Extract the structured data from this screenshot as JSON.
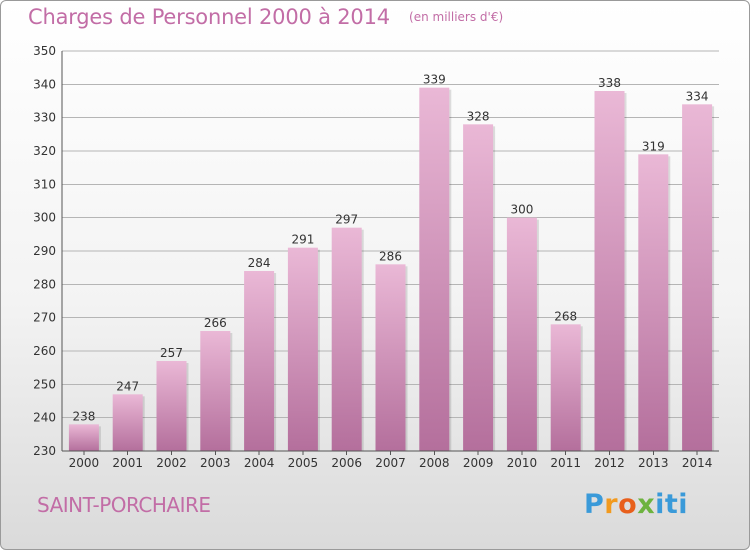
{
  "title": "Charges de Personnel 2000 à 2014",
  "subtitle": "(en milliers d'€)",
  "location": "SAINT-PORCHAIRE",
  "logo_text": "Proxiti",
  "colors": {
    "bar_light": "#eab8d6",
    "bar_dark": "#b46f9c",
    "title": "#c26da6",
    "grid": "#b5b5b5"
  },
  "chart_data": {
    "type": "bar",
    "categories": [
      "2000",
      "2001",
      "2002",
      "2003",
      "2004",
      "2005",
      "2006",
      "2007",
      "2008",
      "2009",
      "2010",
      "2011",
      "2012",
      "2013",
      "2014"
    ],
    "values": [
      238,
      247,
      257,
      266,
      284,
      291,
      297,
      286,
      339,
      328,
      300,
      268,
      338,
      319,
      334
    ],
    "ylim": [
      230,
      350
    ],
    "yticks": [
      230,
      240,
      250,
      260,
      270,
      280,
      290,
      300,
      310,
      320,
      330,
      340,
      350
    ],
    "grid": true,
    "data_labels": true
  }
}
